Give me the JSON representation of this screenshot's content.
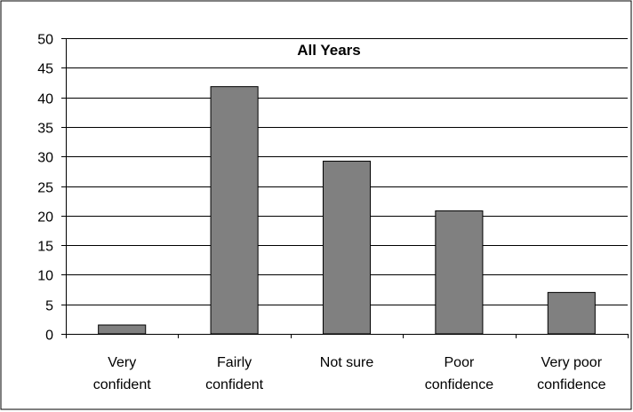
{
  "chart_data": {
    "type": "bar",
    "title": "All Years",
    "xlabel": "",
    "ylabel": "",
    "categories": [
      [
        "Very",
        "confident"
      ],
      [
        "Fairly",
        "confident"
      ],
      [
        "Not sure"
      ],
      [
        "Poor",
        "confidence"
      ],
      [
        "Very poor",
        "confidence"
      ]
    ],
    "values": [
      1.5,
      41.8,
      29.2,
      20.8,
      7.0
    ],
    "ylim": [
      0,
      50
    ],
    "yticks": [
      0,
      5,
      10,
      15,
      20,
      25,
      30,
      35,
      40,
      45,
      50
    ],
    "grid": true,
    "legend": "none",
    "colors": {
      "bar_fill": "#808080",
      "bar_stroke": "#000000",
      "grid": "#000000",
      "background": "#ffffff"
    }
  }
}
